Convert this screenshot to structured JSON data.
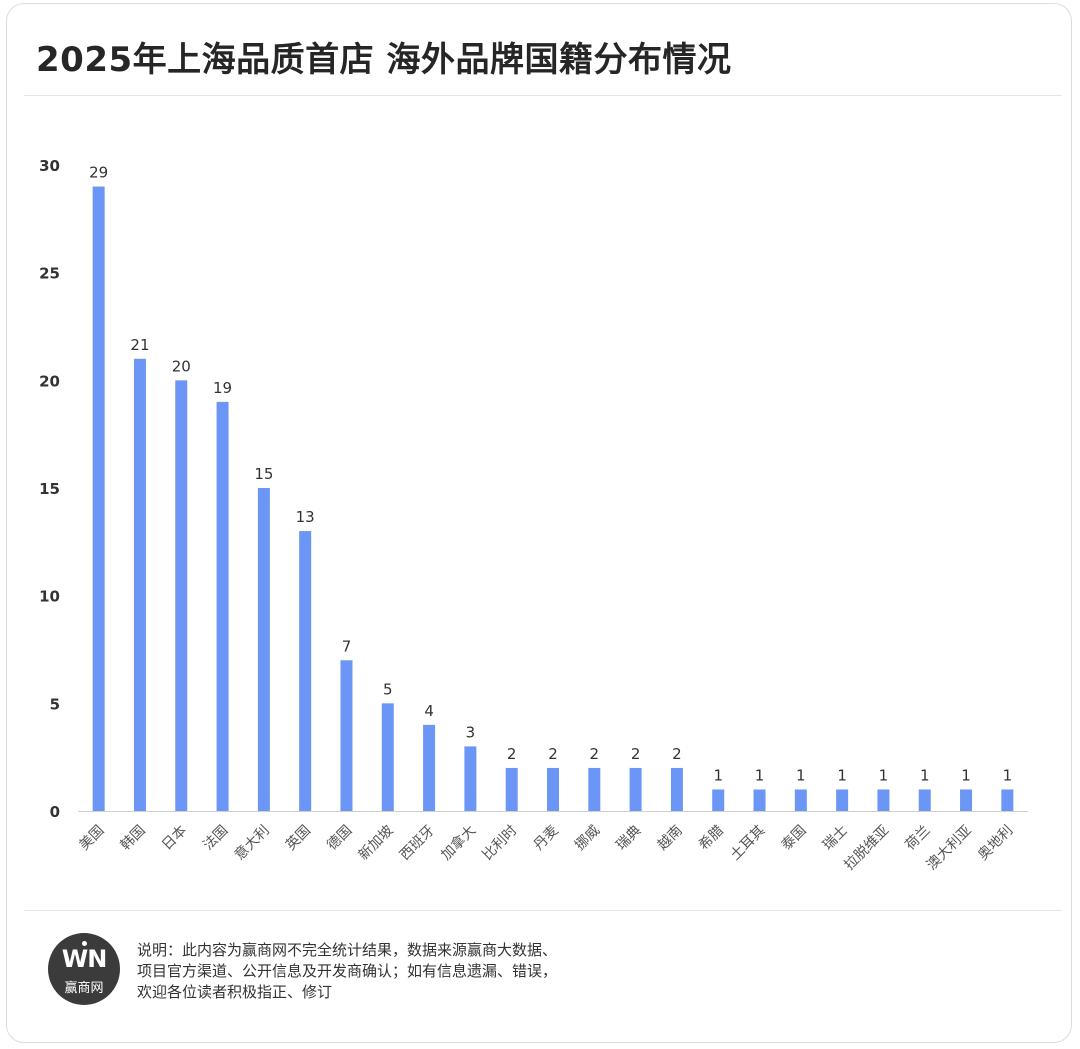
{
  "title": "2025年上海品质首店 海外品牌国籍分布情况",
  "chart_data": {
    "type": "bar",
    "categories": [
      "美国",
      "韩国",
      "日本",
      "法国",
      "意大利",
      "英国",
      "德国",
      "新加坡",
      "西班牙",
      "加拿大",
      "比利时",
      "丹麦",
      "挪威",
      "瑞典",
      "越南",
      "希腊",
      "土耳其",
      "泰国",
      "瑞士",
      "拉脱维亚",
      "荷兰",
      "澳大利亚",
      "奥地利"
    ],
    "values": [
      29,
      21,
      20,
      19,
      15,
      13,
      7,
      5,
      4,
      3,
      2,
      2,
      2,
      2,
      2,
      1,
      1,
      1,
      1,
      1,
      1,
      1,
      1
    ],
    "yticks": [
      0,
      5,
      10,
      15,
      20,
      25,
      30
    ],
    "ylim": [
      0,
      30
    ],
    "bar_color": "#6b96f5",
    "data_labels": true,
    "grid": false
  },
  "footer": {
    "logo_mark": "WN",
    "logo_name": "赢商网",
    "note_lines": [
      "说明：此内容为赢商网不完全统计结果，数据来源赢商大数据、",
      "项目官方渠道、公开信息及开发商确认；如有信息遗漏、错误，",
      "欢迎各位读者积极指正、修订"
    ]
  }
}
